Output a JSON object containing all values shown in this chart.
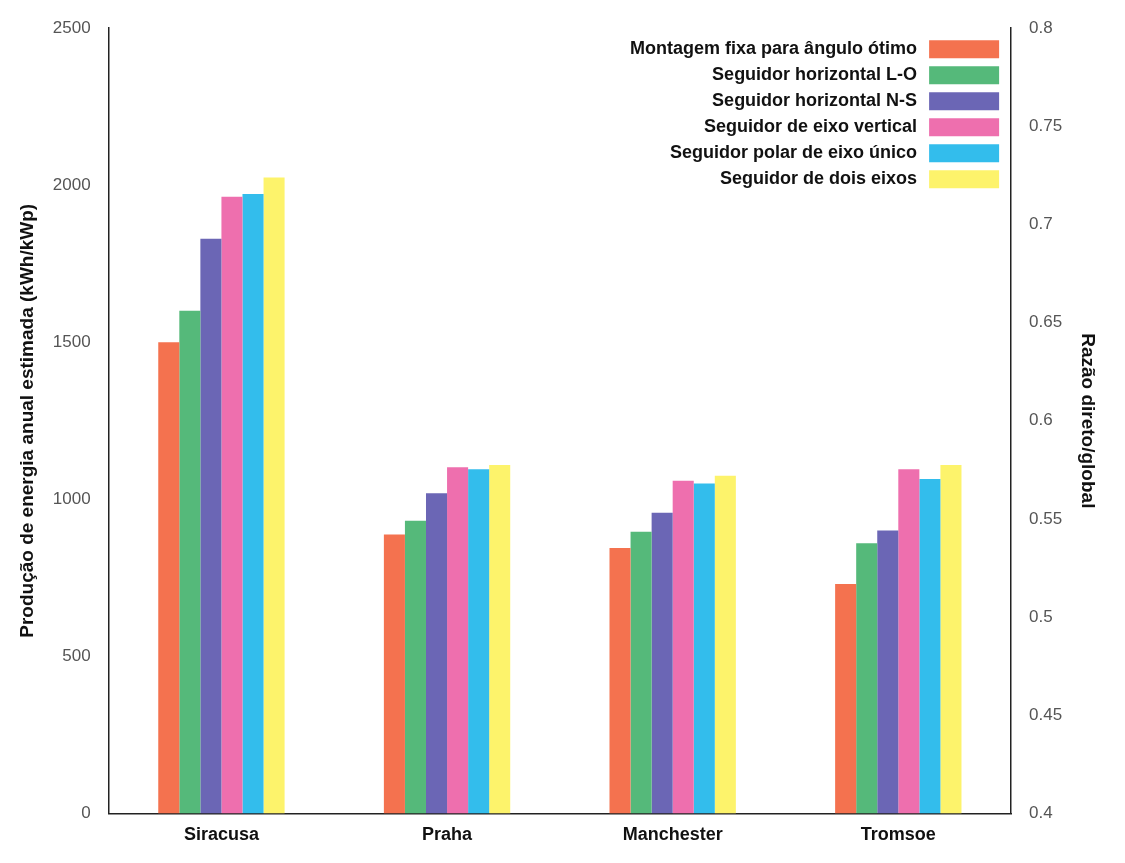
{
  "chart_data": {
    "type": "bar",
    "categories": [
      "Siracusa",
      "Praha",
      "Manchester",
      "Tromsoe"
    ],
    "ylabel": "Produção de energia anual estimada (kWh/kWp)",
    "y2label": "Razão direto/global",
    "ylim": [
      0,
      2500
    ],
    "yticks": [
      0,
      500,
      1000,
      1500,
      2000,
      2500
    ],
    "y2lim": [
      0.4,
      0.8
    ],
    "y2ticks": [
      0.4,
      0.45,
      0.5,
      0.55,
      0.6,
      0.65,
      0.7,
      0.75,
      0.8
    ],
    "legend": "top right",
    "grid": false,
    "series": [
      {
        "name": "Montagem fixa para ângulo ótimo",
        "color": "#f4724f",
        "values": [
          1500,
          888,
          845,
          730
        ]
      },
      {
        "name": "Seguidor horizontal L-O",
        "color": "#55b97a",
        "values": [
          1600,
          932,
          897,
          860
        ]
      },
      {
        "name": "Seguidor horizontal N-S",
        "color": "#6b66b5",
        "values": [
          1830,
          1019,
          957,
          901
        ]
      },
      {
        "name": "Seguidor de eixo vertical",
        "color": "#ee6fae",
        "values": [
          1963,
          1102,
          1059,
          1096
        ]
      },
      {
        "name": "Seguidor polar de eixo único",
        "color": "#33bdec",
        "values": [
          1972,
          1096,
          1050,
          1065
        ]
      },
      {
        "name": "Seguidor de dois eixos",
        "color": "#fdf36b",
        "values": [
          2025,
          1109,
          1075,
          1109
        ]
      }
    ]
  }
}
